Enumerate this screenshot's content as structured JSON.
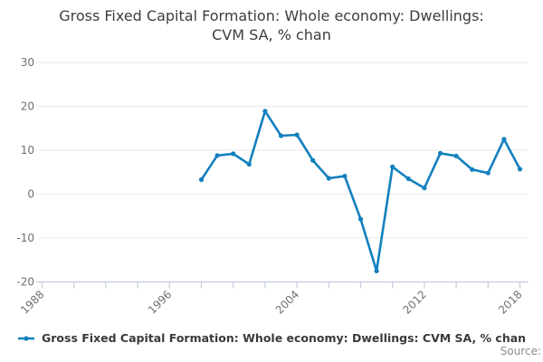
{
  "chart_data": {
    "type": "line",
    "title": "Gross Fixed Capital Formation: Whole economy: Dwellings: CVM SA, % chan",
    "title_lines": [
      "Gross Fixed Capital Formation: Whole economy: Dwellings:",
      "CVM SA, % chan"
    ],
    "series": [
      {
        "name": "Gross Fixed Capital Formation: Whole economy: Dwellings: CVM SA, % chan",
        "color": "#1380BE",
        "x": [
          1998,
          1999,
          2000,
          2001,
          2002,
          2003,
          2004,
          2005,
          2006,
          2007,
          2008,
          2009,
          2010,
          2011,
          2012,
          2013,
          2014,
          2015,
          2016,
          2017,
          2018
        ],
        "values": [
          3.3,
          8.8,
          9.2,
          6.8,
          18.9,
          13.3,
          13.5,
          7.7,
          3.6,
          4.1,
          -5.7,
          -17.5,
          6.2,
          3.5,
          1.4,
          9.3,
          8.7,
          5.6,
          4.8,
          12.5,
          5.7
        ]
      }
    ],
    "xlabel": "",
    "ylabel": "",
    "ylim": [
      -20,
      30
    ],
    "yticks": [
      30,
      20,
      10,
      0,
      -10,
      -20
    ],
    "x_axis_range": [
      1988,
      2018
    ],
    "xticks_minor_step": 2,
    "xticks_labeled": [
      1988,
      1996,
      2004,
      2012,
      2018
    ],
    "grid": "horizontal",
    "legend_position": "bottom-left",
    "marker": "dot"
  },
  "colors": {
    "line": "#1380BE",
    "grid": "#e9e9e9",
    "axis": "#c6cce2",
    "tick_text": "#6f6f6f",
    "title_text": "#3d3d3d",
    "source_text": "#8c8c8c"
  },
  "footer": {
    "source_label": "Source:"
  }
}
